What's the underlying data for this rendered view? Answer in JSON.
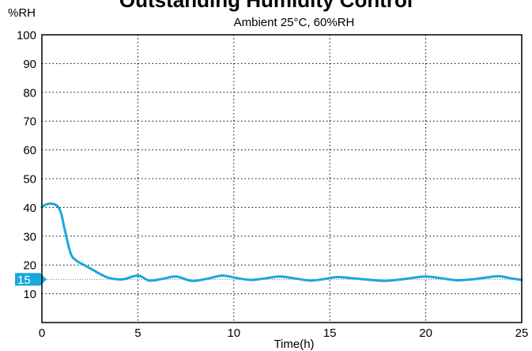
{
  "chart_data": {
    "type": "line",
    "title": "Outstanding Humidity Control",
    "subtitle": "Ambient 25°C, 60%RH",
    "xlabel": "Time(h)",
    "ylabel": "%RH",
    "xlim": [
      0,
      25
    ],
    "ylim": [
      0,
      100
    ],
    "x_ticks": [
      0,
      5,
      10,
      15,
      20,
      25
    ],
    "y_ticks": [
      10,
      20,
      30,
      40,
      50,
      60,
      70,
      80,
      90,
      100
    ],
    "grid": true,
    "reference_line": {
      "value": 15,
      "label": "15"
    },
    "line_color": "#1aa7de",
    "series": [
      {
        "x": [
          0,
          0.2,
          0.5,
          0.8,
          1.0,
          1.2,
          1.5,
          1.8,
          2.2,
          2.6,
          3.0,
          3.5,
          4.2,
          5.0,
          5.6,
          6.3,
          7.0,
          7.8,
          8.6,
          9.4,
          10.2,
          10.9,
          11.6,
          12.4,
          13.2,
          14.0,
          14.7,
          15.4,
          16.2,
          17.0,
          17.8,
          18.6,
          19.3,
          20.0,
          20.8,
          21.6,
          22.4,
          23.1,
          23.8,
          24.4,
          25.0
        ],
        "y": [
          40,
          41,
          41.3,
          40.5,
          38,
          32,
          24,
          21.5,
          20,
          18.5,
          17,
          15.5,
          15,
          16.3,
          14.6,
          15.2,
          16,
          14.5,
          15.2,
          16.3,
          15.4,
          14.8,
          15.3,
          16,
          15.3,
          14.6,
          15.1,
          15.8,
          15.4,
          14.9,
          14.5,
          14.9,
          15.5,
          16,
          15.4,
          14.7,
          15,
          15.6,
          16.1,
          15.4,
          14.8
        ]
      }
    ]
  }
}
